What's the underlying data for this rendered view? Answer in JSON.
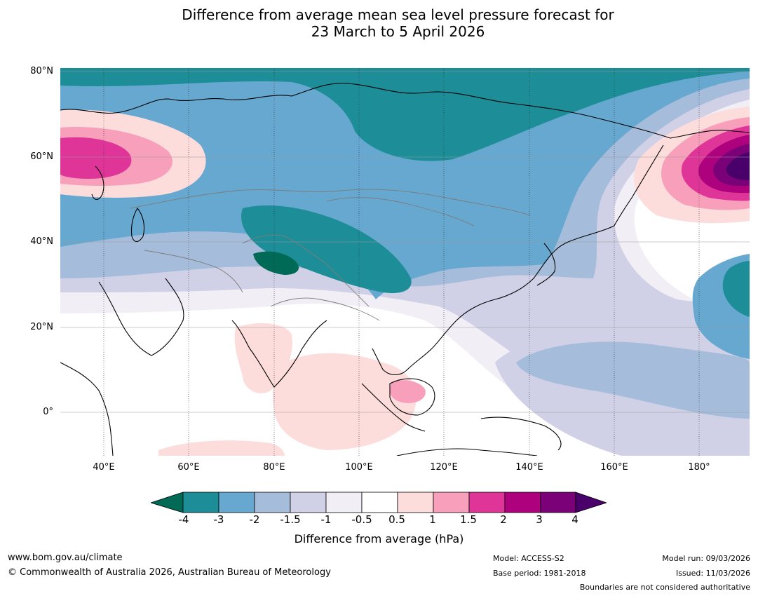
{
  "title": {
    "line1": "Difference from average mean sea level pressure forecast for",
    "line2": "23 March to 5 April 2026"
  },
  "map": {
    "region": "Asia and western Pacific",
    "lat_labels": [
      "80°N",
      "60°N",
      "40°N",
      "20°N",
      "0°"
    ],
    "lon_labels": [
      "40°E",
      "60°E",
      "80°E",
      "100°E",
      "120°E",
      "140°E",
      "160°E",
      "180°"
    ]
  },
  "colorbar": {
    "ticks": [
      "-4",
      "-3",
      "-2",
      "-1.5",
      "-1",
      "-0.5",
      "0.5",
      "1",
      "1.5",
      "2",
      "3",
      "4"
    ],
    "label": "Difference from average (hPa)",
    "colors": {
      "lt_-4": "#006a57",
      "-4_-3": "#1d8e98",
      "-3_-2": "#66a8cf",
      "-2_-1.5": "#a6bcdb",
      "-1.5_-1": "#d0d1e6",
      "-1_-0.5": "#f2eef6",
      "-0.5_0.5": "#ffffff",
      "0.5_1": "#fddcdc",
      "1_1.5": "#f8a0bb",
      "1.5_2": "#df3599",
      "2_3": "#ae017e",
      "3_4": "#7a0177",
      "gt_4": "#4a006a"
    }
  },
  "footer": {
    "url": "www.bom.gov.au/climate",
    "copyright": "© Commonwealth of Australia 2026, Australian Bureau of Meteorology",
    "model": "Model: ACCESS-S2",
    "base_period": "Base period: 1981-2018",
    "model_run": "Model run: 09/03/2026",
    "issued": "Issued: 11/03/2026",
    "disclaimer": "Boundaries are not considered authoritative"
  }
}
